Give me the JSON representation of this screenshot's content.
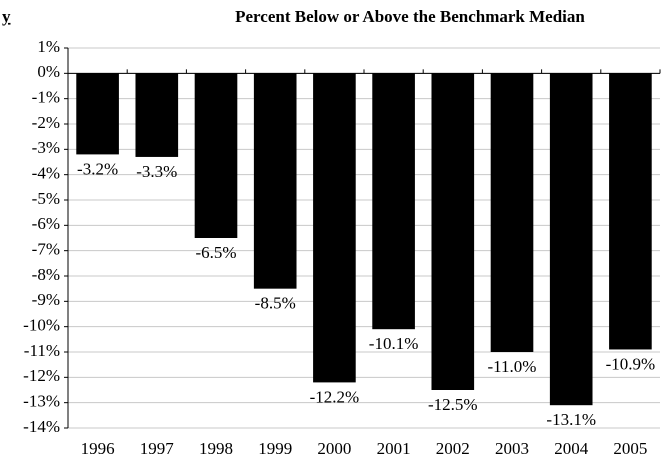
{
  "chart_data": {
    "type": "bar",
    "title": "Percent Below or Above the Benchmark Median",
    "annotation": "y",
    "categories": [
      "1996",
      "1997",
      "1998",
      "1999",
      "2000",
      "2001",
      "2002",
      "2003",
      "2004",
      "2005"
    ],
    "values": [
      -3.2,
      -3.3,
      -6.5,
      -8.5,
      -12.2,
      -10.1,
      -12.5,
      -11.0,
      -13.1,
      -10.9
    ],
    "value_labels": [
      "-3.2%",
      "-3.3%",
      "-6.5%",
      "-8.5%",
      "-12.2%",
      "-10.1%",
      "-12.5%",
      "-11.0%",
      "-13.1%",
      "-10.9%"
    ],
    "color": "#000000",
    "ylim": [
      -14,
      1
    ],
    "yticks": [
      {
        "value": 1,
        "label": "1%"
      },
      {
        "value": 0,
        "label": "0%"
      },
      {
        "value": -1,
        "label": "-1%"
      },
      {
        "value": -2,
        "label": "-2%"
      },
      {
        "value": -3,
        "label": "-3%"
      },
      {
        "value": -4,
        "label": "-4%"
      },
      {
        "value": -5,
        "label": "-5%"
      },
      {
        "value": -6,
        "label": "-6%"
      },
      {
        "value": -7,
        "label": "-7%"
      },
      {
        "value": -8,
        "label": "-8%"
      },
      {
        "value": -9,
        "label": "-9%"
      },
      {
        "value": -10,
        "label": "-10%"
      },
      {
        "value": -11,
        "label": "-11%"
      },
      {
        "value": -12,
        "label": "-12%"
      },
      {
        "value": -13,
        "label": "-13%"
      },
      {
        "value": -14,
        "label": "-14%"
      }
    ],
    "grid": true
  }
}
